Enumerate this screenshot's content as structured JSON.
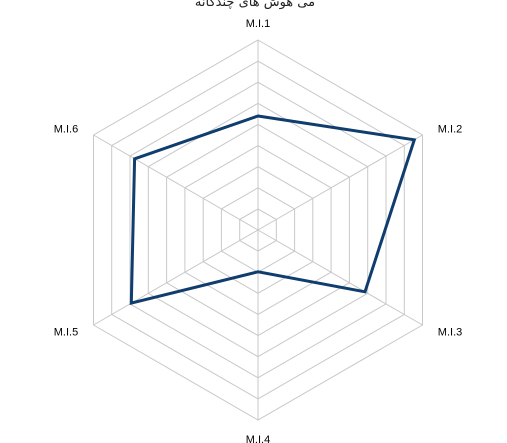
{
  "chart_data": {
    "type": "radar",
    "title": "",
    "title_fragment": "ﻣﯽ ﻫﻮﺵ ﻫﺎﯼ ﭼﻨﺪﮔﺎﻧﻪ",
    "categories": [
      "M.I.1",
      "M.I.2",
      "M.I.3",
      "M.I.4",
      "M.I.5",
      "M.I.6"
    ],
    "series": [
      {
        "values": [
          60,
          95,
          65,
          22,
          77,
          75
        ]
      }
    ],
    "rlim": [
      0,
      100
    ],
    "ring_count": 9,
    "grid": true,
    "legend": "none"
  },
  "colors": {
    "series": "#0f3d6e",
    "grid": "#c8c8c8",
    "background": "#ffffff"
  }
}
